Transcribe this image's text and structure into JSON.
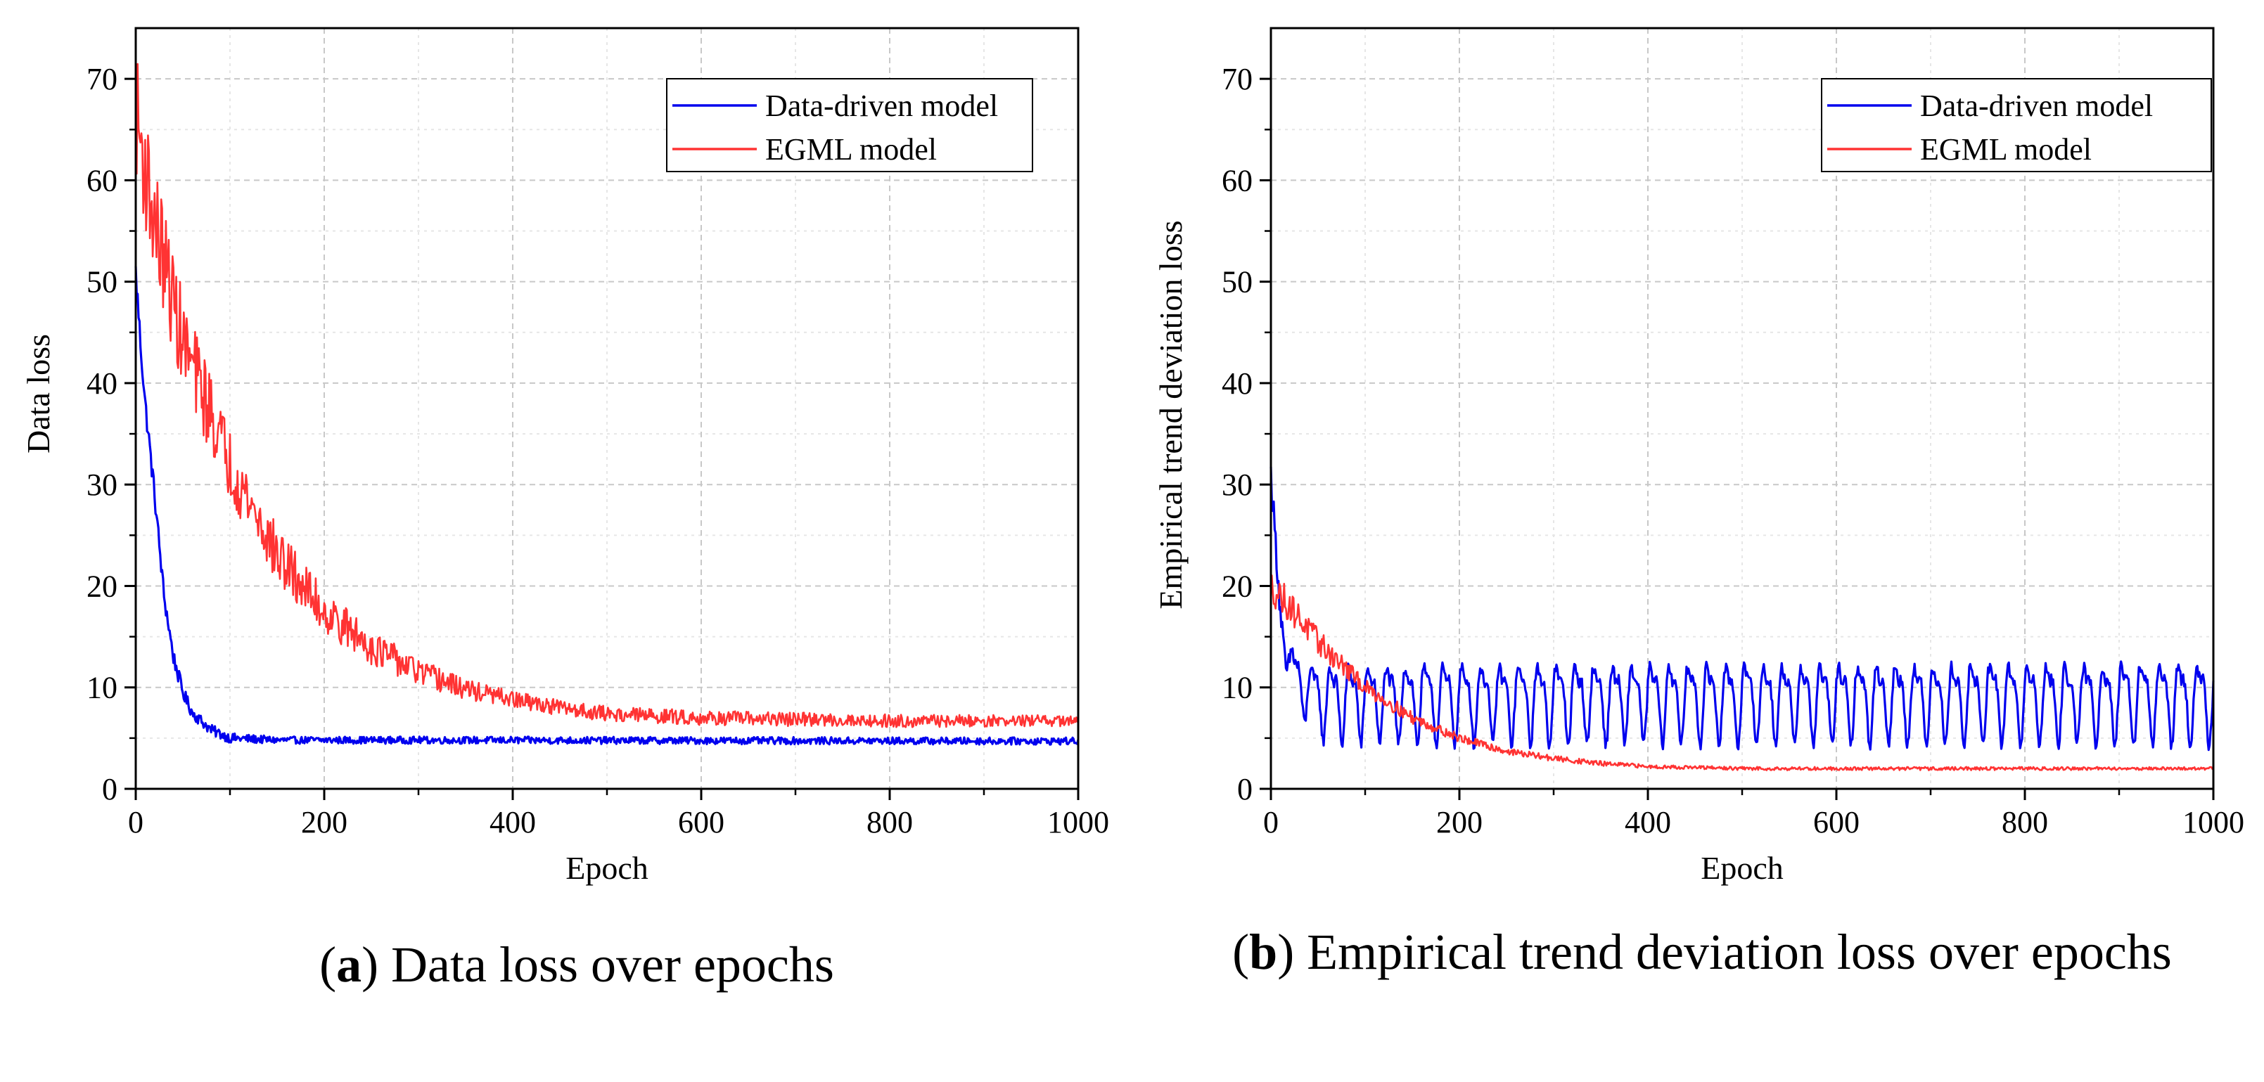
{
  "chart_data": [
    {
      "id": "a",
      "type": "line",
      "xlabel": "Epoch",
      "ylabel": "Data loss",
      "xlim": [
        0,
        1000
      ],
      "ylim": [
        0,
        75
      ],
      "xticks": [
        0,
        200,
        400,
        600,
        800,
        1000
      ],
      "yticks": [
        0,
        10,
        20,
        30,
        40,
        50,
        60,
        70
      ],
      "grid": true,
      "legend_position": "top-right",
      "caption_label": "a",
      "caption_text": ") Data loss over epochs",
      "series": [
        {
          "name": "Data-driven model",
          "color": "#0000ee",
          "keypoints": [
            [
              0,
              51
            ],
            [
              5,
              44
            ],
            [
              10,
              38
            ],
            [
              20,
              29
            ],
            [
              30,
              19
            ],
            [
              40,
              13
            ],
            [
              50,
              9.5
            ],
            [
              60,
              7.5
            ],
            [
              80,
              5.8
            ],
            [
              100,
              5
            ],
            [
              150,
              4.8
            ],
            [
              300,
              4.8
            ],
            [
              1000,
              4.7
            ]
          ],
          "noise": [
            [
              0,
              1.2
            ],
            [
              60,
              0.6
            ],
            [
              150,
              0.35
            ],
            [
              1000,
              0.35
            ]
          ],
          "period": 0
        },
        {
          "name": "EGML model",
          "color": "#ff3333",
          "keypoints": [
            [
              0,
              67
            ],
            [
              10,
              61
            ],
            [
              20,
              56
            ],
            [
              50,
              44
            ],
            [
              80,
              37
            ],
            [
              100,
              32
            ],
            [
              150,
              23
            ],
            [
              200,
              17.5
            ],
            [
              250,
              14
            ],
            [
              300,
              11.5
            ],
            [
              350,
              9.8
            ],
            [
              400,
              8.8
            ],
            [
              450,
              8
            ],
            [
              500,
              7.4
            ],
            [
              600,
              7
            ],
            [
              800,
              6.7
            ],
            [
              1000,
              6.7
            ]
          ],
          "noise": [
            [
              0,
              6
            ],
            [
              100,
              3.5
            ],
            [
              200,
              2.2
            ],
            [
              300,
              1.3
            ],
            [
              400,
              0.8
            ],
            [
              1000,
              0.55
            ]
          ],
          "period": 0
        }
      ]
    },
    {
      "id": "b",
      "type": "line",
      "xlabel": "Epoch",
      "ylabel": "Empirical trend deviation loss",
      "xlim": [
        0,
        1000
      ],
      "ylim": [
        0,
        75
      ],
      "xticks": [
        0,
        200,
        400,
        600,
        800,
        1000
      ],
      "yticks": [
        0,
        10,
        20,
        30,
        40,
        50,
        60,
        70
      ],
      "grid": true,
      "legend_position": "top-right",
      "caption_label": "b",
      "caption_text": ") Empirical trend deviation loss over epochs",
      "series": [
        {
          "name": "Data-driven model",
          "color": "#0000ee",
          "keypoints": [
            [
              0,
              31
            ],
            [
              5,
              24
            ],
            [
              10,
              17
            ],
            [
              20,
              12
            ],
            [
              40,
              9.5
            ],
            [
              60,
              9
            ],
            [
              1000,
              9
            ]
          ],
          "noise": [
            [
              0,
              1.5
            ],
            [
              40,
              0.6
            ],
            [
              1000,
              0.6
            ]
          ],
          "period": 20,
          "amplitude": [
            [
              0,
              0
            ],
            [
              20,
              2
            ],
            [
              60,
              3.2
            ],
            [
              1000,
              3.3
            ]
          ]
        },
        {
          "name": "EGML model",
          "color": "#ff3333",
          "keypoints": [
            [
              0,
              20
            ],
            [
              20,
              18
            ],
            [
              50,
              14.5
            ],
            [
              100,
              10
            ],
            [
              150,
              7
            ],
            [
              200,
              5
            ],
            [
              250,
              3.7
            ],
            [
              300,
              3
            ],
            [
              350,
              2.5
            ],
            [
              400,
              2.2
            ],
            [
              500,
              2
            ],
            [
              1000,
              2
            ]
          ],
          "noise": [
            [
              0,
              1.8
            ],
            [
              100,
              0.8
            ],
            [
              200,
              0.4
            ],
            [
              400,
              0.18
            ],
            [
              1000,
              0.15
            ]
          ],
          "period": 0
        }
      ]
    }
  ]
}
